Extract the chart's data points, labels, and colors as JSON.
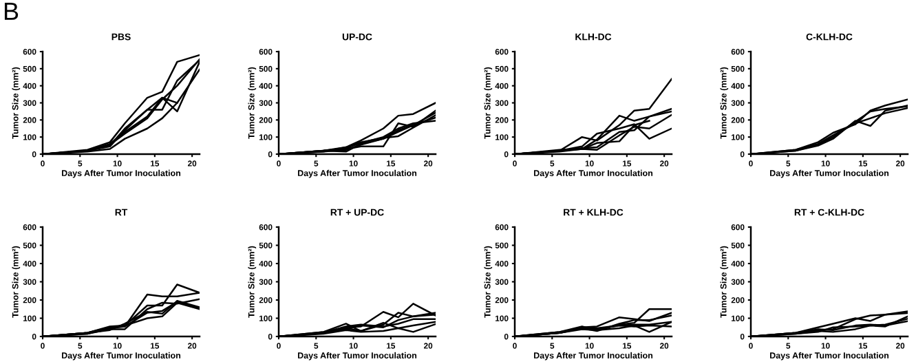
{
  "chart_data": [
    {
      "type": "line",
      "title": "PBS",
      "xlabel": "Days After Tumor Inoculation",
      "ylabel": "Tumor Size (mm²)",
      "annotations": [
        "B"
      ],
      "x": [
        0,
        6,
        9,
        11,
        14,
        16,
        18,
        21
      ],
      "xlim": [
        0,
        21
      ],
      "ylim": [
        0,
        600
      ],
      "xticks": [
        0,
        5,
        10,
        15,
        20
      ],
      "yticks": [
        0,
        100,
        200,
        300,
        400,
        500,
        600
      ],
      "line_style": "solid",
      "series": [
        {
          "color": "#000000",
          "values": [
            0,
            25,
            70,
            180,
            330,
            365,
            540,
            580
          ]
        },
        {
          "color": "#000000",
          "values": [
            0,
            20,
            50,
            150,
            260,
            260,
            430,
            550
          ]
        },
        {
          "color": "#000000",
          "values": [
            0,
            20,
            60,
            130,
            220,
            330,
            250,
            540
          ]
        },
        {
          "color": "#000000",
          "values": [
            0,
            15,
            30,
            90,
            150,
            210,
            300,
            495
          ]
        },
        {
          "color": "#000000",
          "values": [
            0,
            20,
            55,
            120,
            210,
            320,
            400,
            555
          ]
        },
        {
          "color": "#000000",
          "values": [
            0,
            20,
            45,
            140,
            260,
            330,
            300,
            null
          ]
        }
      ]
    },
    {
      "type": "line",
      "title": "UP-DC",
      "xlabel": "Days After Tumor Inoculation",
      "ylabel": "Tumor Size (mm²)",
      "x": [
        0,
        6,
        9,
        11,
        14,
        16,
        18,
        21
      ],
      "xlim": [
        0,
        21
      ],
      "ylim": [
        0,
        600
      ],
      "xticks": [
        0,
        5,
        10,
        15,
        20
      ],
      "yticks": [
        0,
        100,
        200,
        300,
        400,
        500,
        600
      ],
      "line_style": "solid",
      "series": [
        {
          "color": "#000000",
          "values": [
            0,
            20,
            40,
            80,
            150,
            225,
            235,
            300
          ]
        },
        {
          "color": "#000000",
          "values": [
            0,
            20,
            30,
            45,
            45,
            180,
            160,
            255
          ]
        },
        {
          "color": "#000000",
          "values": [
            0,
            20,
            15,
            60,
            90,
            140,
            170,
            242
          ]
        },
        {
          "color": "#000000",
          "values": [
            0,
            15,
            40,
            70,
            95,
            105,
            155,
            228
          ]
        },
        {
          "color": "#000000",
          "values": [
            0,
            20,
            35,
            65,
            100,
            150,
            180,
            195
          ]
        },
        {
          "color": "#000000",
          "values": [
            0,
            15,
            25,
            55,
            90,
            130,
            170,
            214
          ]
        }
      ]
    },
    {
      "type": "line",
      "title": "KLH-DC",
      "xlabel": "Days After Tumor Inoculation",
      "ylabel": "Tumor Size (mm²)",
      "x": [
        0,
        6,
        9,
        11,
        14,
        16,
        18,
        21
      ],
      "xlim": [
        0,
        21
      ],
      "ylim": [
        0,
        600
      ],
      "xticks": [
        0,
        5,
        10,
        15,
        20
      ],
      "yticks": [
        0,
        100,
        200,
        300,
        400,
        500,
        600
      ],
      "line_style": "solid",
      "series": [
        {
          "color": "#000000",
          "values": [
            0,
            25,
            30,
            85,
            225,
            195,
            220,
            265
          ]
        },
        {
          "color": "#000000",
          "values": [
            0,
            20,
            100,
            80,
            170,
            255,
            265,
            440
          ]
        },
        {
          "color": "#000000",
          "values": [
            0,
            20,
            45,
            120,
            150,
            175,
            90,
            150
          ]
        },
        {
          "color": "#000000",
          "values": [
            0,
            15,
            30,
            25,
            110,
            160,
            150,
            230
          ]
        },
        {
          "color": "#000000",
          "values": [
            0,
            20,
            30,
            65,
            75,
            170,
            195,
            null
          ]
        },
        {
          "color": "#000000",
          "values": [
            0,
            20,
            35,
            40,
            130,
            140,
            220,
            250
          ]
        }
      ]
    },
    {
      "type": "line",
      "title": "C-KLH-DC",
      "xlabel": "Days After Tumor Inoculation",
      "ylabel": "Tumor Size (mm²)",
      "x": [
        0,
        6,
        9,
        11,
        14,
        16,
        18,
        21
      ],
      "xlim": [
        0,
        21
      ],
      "ylim": [
        0,
        600
      ],
      "xticks": [
        0,
        5,
        10,
        15,
        20
      ],
      "yticks": [
        0,
        100,
        200,
        300,
        400,
        500,
        600
      ],
      "line_style": "solid",
      "series": [
        {
          "color": "#000000",
          "values": [
            0,
            25,
            70,
            125,
            175,
            255,
            285,
            320
          ]
        },
        {
          "color": "#000000",
          "values": [
            0,
            20,
            50,
            90,
            195,
            165,
            255,
            285
          ]
        },
        {
          "color": "#000000",
          "values": [
            0,
            25,
            60,
            110,
            180,
            210,
            240,
            270
          ]
        },
        {
          "color": "#000000",
          "values": [
            0,
            20,
            55,
            100,
            190,
            250,
            265,
            280
          ]
        }
      ]
    },
    {
      "type": "line",
      "title": "RT",
      "xlabel": "Days After Tumor Inoculation",
      "ylabel": "Tumor Size (mm²)",
      "x": [
        0,
        6,
        9,
        11,
        14,
        16,
        18,
        21
      ],
      "xlim": [
        0,
        21
      ],
      "ylim": [
        0,
        600
      ],
      "xticks": [
        0,
        5,
        10,
        15,
        20
      ],
      "yticks": [
        0,
        100,
        200,
        300,
        400,
        500,
        600
      ],
      "line_style": "solid",
      "series": [
        {
          "color": "#000000",
          "values": [
            0,
            20,
            50,
            55,
            230,
            220,
            220,
            240
          ]
        },
        {
          "color": "#000000",
          "values": [
            0,
            20,
            55,
            60,
            170,
            170,
            285,
            240
          ]
        },
        {
          "color": "#000000",
          "values": [
            0,
            15,
            40,
            40,
            150,
            185,
            180,
            205
          ]
        },
        {
          "color": "#000000",
          "values": [
            0,
            15,
            45,
            55,
            130,
            140,
            190,
            155
          ]
        },
        {
          "color": "#000000",
          "values": [
            0,
            20,
            50,
            60,
            100,
            110,
            185,
            150
          ]
        },
        {
          "color": "#000000",
          "values": [
            0,
            20,
            35,
            70,
            135,
            125,
            195,
            160
          ]
        }
      ]
    },
    {
      "type": "line",
      "title": "RT + UP-DC",
      "xlabel": "Days After Tumor Inoculation",
      "ylabel": "Tumor Size (mm²)",
      "x": [
        0,
        6,
        9,
        11,
        14,
        16,
        18,
        21
      ],
      "xlim": [
        0,
        21
      ],
      "ylim": [
        0,
        600
      ],
      "xticks": [
        0,
        5,
        10,
        15,
        20
      ],
      "yticks": [
        0,
        100,
        200,
        300,
        400,
        500,
        600
      ],
      "line_style": "solid",
      "series": [
        {
          "color": "#000000",
          "values": [
            0,
            25,
            70,
            30,
            65,
            130,
            110,
            120
          ]
        },
        {
          "color": "#000000",
          "values": [
            0,
            25,
            50,
            55,
            135,
            105,
            180,
            115
          ]
        },
        {
          "color": "#000000",
          "values": [
            0,
            20,
            45,
            30,
            75,
            45,
            25,
            68
          ]
        },
        {
          "color": "#000000",
          "values": [
            0,
            20,
            40,
            60,
            50,
            90,
            110,
            130
          ]
        },
        {
          "color": "#000000",
          "values": [
            0,
            15,
            35,
            25,
            30,
            45,
            60,
            80
          ]
        },
        {
          "color": "#000000",
          "values": [
            0,
            20,
            55,
            65,
            55,
            70,
            95,
            95
          ]
        }
      ]
    },
    {
      "type": "line",
      "title": "RT + KLH-DC",
      "xlabel": "Days After Tumor Inoculation",
      "ylabel": "Tumor Size (mm²)",
      "x": [
        0,
        6,
        9,
        11,
        14,
        16,
        18,
        21
      ],
      "xlim": [
        0,
        21
      ],
      "ylim": [
        0,
        600
      ],
      "xticks": [
        0,
        5,
        10,
        15,
        20
      ],
      "yticks": [
        0,
        100,
        200,
        300,
        400,
        500,
        600
      ],
      "line_style": "solid",
      "series": [
        {
          "color": "#000000",
          "values": [
            0,
            25,
            55,
            35,
            65,
            75,
            150,
            150
          ]
        },
        {
          "color": "#000000",
          "values": [
            0,
            20,
            50,
            55,
            105,
            95,
            85,
            130
          ]
        },
        {
          "color": "#000000",
          "values": [
            0,
            25,
            45,
            30,
            70,
            90,
            90,
            115
          ]
        },
        {
          "color": "#000000",
          "values": [
            0,
            20,
            40,
            35,
            45,
            60,
            25,
            80
          ]
        },
        {
          "color": "#000000",
          "values": [
            0,
            20,
            45,
            40,
            60,
            55,
            60,
            55
          ]
        },
        {
          "color": "#000000",
          "values": [
            0,
            20,
            45,
            45,
            60,
            65,
            65,
            80
          ]
        }
      ]
    },
    {
      "type": "line",
      "title": "RT + C-KLH-DC",
      "xlabel": "Days After Tumor Inoculation",
      "ylabel": "Tumor Size (mm²)",
      "x": [
        0,
        6,
        9,
        11,
        14,
        16,
        18,
        21
      ],
      "xlim": [
        0,
        21
      ],
      "ylim": [
        0,
        600
      ],
      "xticks": [
        0,
        5,
        10,
        15,
        20
      ],
      "yticks": [
        0,
        100,
        200,
        300,
        400,
        500,
        600
      ],
      "line_style": "solid",
      "series": [
        {
          "color": "#000000",
          "values": [
            0,
            20,
            50,
            70,
            100,
            85,
            120,
            138
          ]
        },
        {
          "color": "#000000",
          "values": [
            0,
            20,
            35,
            40,
            95,
            115,
            120,
            128
          ]
        },
        {
          "color": "#000000",
          "values": [
            0,
            15,
            30,
            25,
            40,
            60,
            55,
            110
          ]
        },
        {
          "color": "#000000",
          "values": [
            0,
            20,
            40,
            35,
            60,
            65,
            60,
            84
          ]
        },
        {
          "color": "#000000",
          "values": [
            0,
            15,
            25,
            50,
            55,
            60,
            65,
            97
          ]
        }
      ]
    }
  ]
}
